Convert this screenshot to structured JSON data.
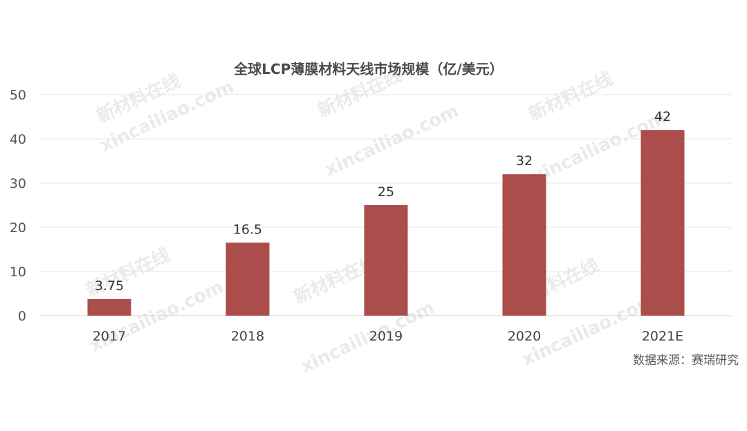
{
  "chart_data": {
    "type": "bar",
    "title": "全球LCP薄膜材料天线市场规模（亿/美元）",
    "categories": [
      "2017",
      "2018",
      "2019",
      "2020",
      "2021E"
    ],
    "values": [
      3.75,
      16.5,
      25,
      32,
      42
    ],
    "value_labels": [
      "3.75",
      "16.5",
      "25",
      "32",
      "42"
    ],
    "y_ticks": [
      "0",
      "10",
      "20",
      "30",
      "40",
      "50"
    ],
    "ylim": [
      0,
      50
    ],
    "grid": true,
    "bar_color": "#ab4d4b",
    "gridline_color": "#e6e6e6"
  },
  "source": "数据来源：赛瑞研究",
  "watermark": {
    "cn": "新材料在线",
    "en": "xincailiao.com"
  }
}
